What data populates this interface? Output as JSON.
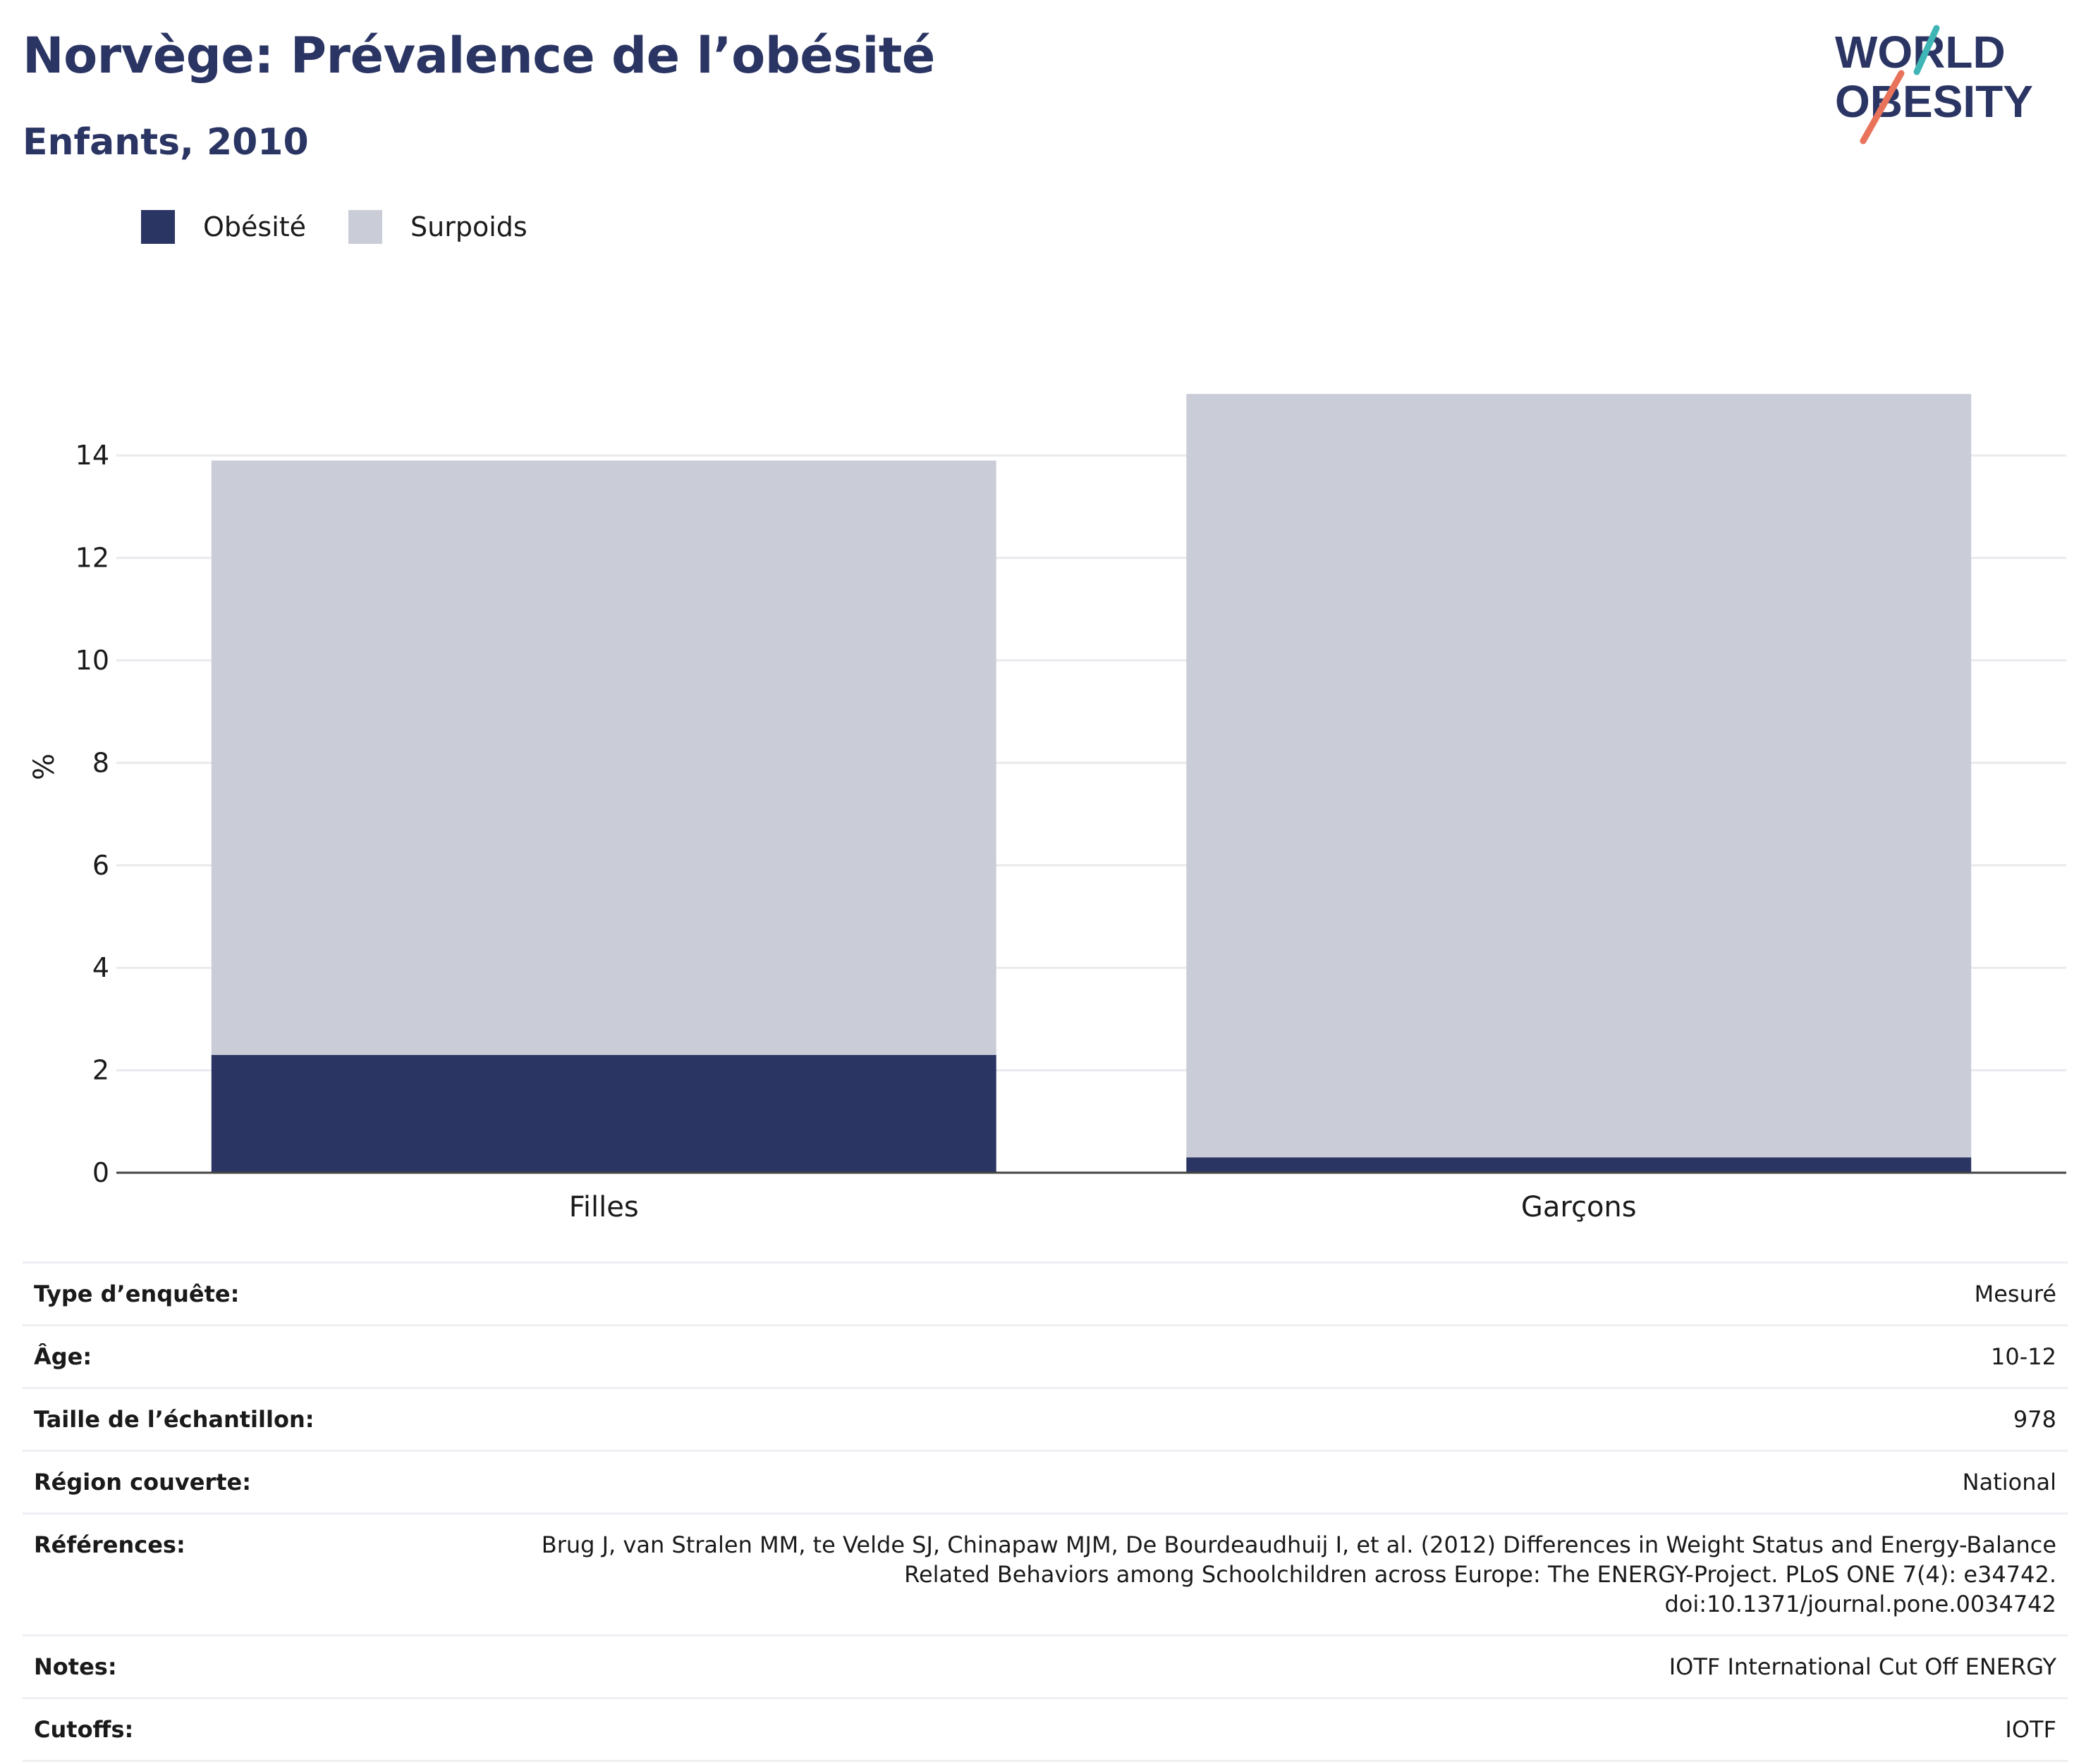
{
  "header": {
    "title": "Norvège: Prévalence de l’obésité",
    "subtitle": "Enfants, 2010",
    "logo": {
      "line1": "WORLD",
      "line2": "OBESITY",
      "accent_teal": "#3fb5b5",
      "accent_coral": "#e8735a"
    }
  },
  "legend": [
    {
      "label": "Obésité",
      "color": "#2b3563"
    },
    {
      "label": "Surpoids",
      "color": "#cacdd8"
    }
  ],
  "chart_data": {
    "type": "bar",
    "stacked": true,
    "categories": [
      "Filles",
      "Garçons"
    ],
    "series": [
      {
        "name": "Obésité",
        "color": "#2b3563",
        "values": [
          2.3,
          0.3
        ]
      },
      {
        "name": "Surpoids",
        "color": "#cacdd8",
        "values": [
          11.6,
          14.9
        ]
      }
    ],
    "ylabel": "%",
    "ylim": [
      0,
      15.2
    ],
    "yticks": [
      0,
      2,
      4,
      6,
      8,
      10,
      12,
      14
    ],
    "grid": true,
    "legend_position": "top-left"
  },
  "meta": [
    {
      "label": "Type d’enquête:",
      "value": "Mesuré"
    },
    {
      "label": "Âge:",
      "value": "10-12"
    },
    {
      "label": "Taille de l’échantillon:",
      "value": "978"
    },
    {
      "label": "Région couverte:",
      "value": "National"
    },
    {
      "label": "Références:",
      "value_lines": [
        "Brug J, van Stralen MM, te Velde SJ, Chinapaw MJM, De Bourdeaudhuij I, et al. (2012) Differences in Weight Status and Energy-Balance",
        "Related Behaviors among Schoolchildren across Europe: The ENERGY-Project. PLoS ONE 7(4): e34742.",
        "doi:10.1371/journal.pone.0034742"
      ]
    },
    {
      "label": "Notes:",
      "value": "IOTF International Cut Off ENERGY"
    },
    {
      "label": "Cutoffs:",
      "value": "IOTF"
    }
  ]
}
